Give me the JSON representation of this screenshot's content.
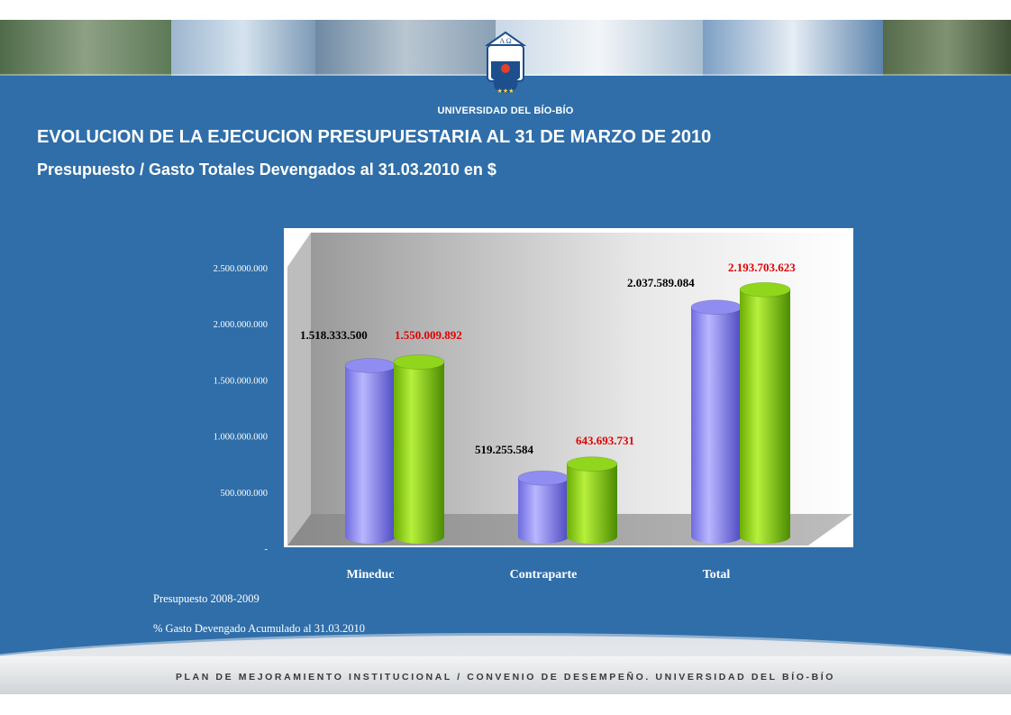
{
  "header": {
    "university": "UNIVERSIDAD DEL BÍO-BÍO",
    "logo_text": "A Ω"
  },
  "slide": {
    "title": "EVOLUCION DE LA EJECUCION PRESUPUESTARIA AL 31 DE MARZO DE 2010",
    "subtitle": "Presupuesto / Gasto Totales Devengados al 31.03.2010 en $"
  },
  "chart_data": {
    "type": "bar",
    "categories": [
      "Mineduc",
      "Contraparte",
      "Total"
    ],
    "series": [
      {
        "name": "Presupuesto 2008-2009",
        "values": [
          1518333500,
          519255584,
          2037589084
        ],
        "labels": [
          "1.518.333.500",
          "519.255.584",
          "2.037.589.084"
        ],
        "color": "#8f8cf2",
        "label_color": "#000000"
      },
      {
        "name": "% Gasto Devengado Acumulado al 31.03.2010",
        "values": [
          1550009892,
          643693731,
          2193703623
        ],
        "labels": [
          "1.550.009.892",
          "643.693.731",
          "2.193.703.623"
        ],
        "color": "#8fd61c",
        "label_color": "#e00000"
      }
    ],
    "ylim": [
      0,
      2500000000
    ],
    "y_ticks": [
      {
        "value": 0,
        "label": "-"
      },
      {
        "value": 500000000,
        "label": "500.000.000"
      },
      {
        "value": 1000000000,
        "label": "1.000.000.000"
      },
      {
        "value": 1500000000,
        "label": "1.500.000.000"
      },
      {
        "value": 2000000000,
        "label": "2.000.000.000"
      },
      {
        "value": 2500000000,
        "label": "2.500.000.000"
      }
    ],
    "grid": false,
    "legend_position": "bottom-left",
    "style": "3d-cylinder"
  },
  "footer": {
    "text": "PLAN DE MEJORAMIENTO INSTITUCIONAL / CONVENIO DE DESEMPEÑO. UNIVERSIDAD DEL BÍO-BÍO"
  }
}
